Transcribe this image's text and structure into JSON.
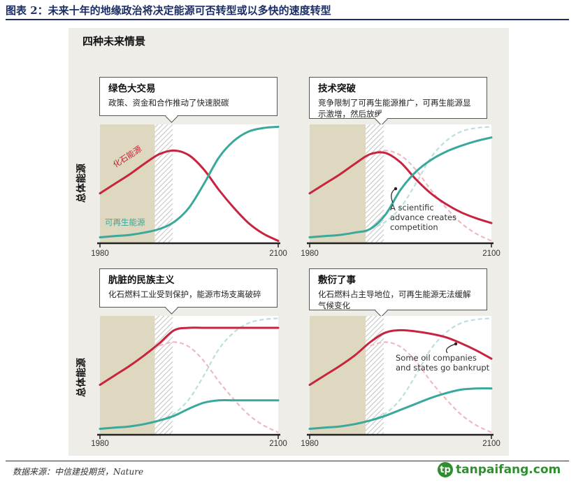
{
  "figure_title": "图表 2：未来十年的地缘政治将决定能源可否转型或以多快的速度转型",
  "panel_title": "四种未来情景",
  "y_axis_label": "总体能源",
  "source": "数据来源：中信建投期货，Nature",
  "logo": {
    "badge": "tp",
    "text": "tanpaifang.com"
  },
  "colors": {
    "fossil": "#c8233f",
    "renewable": "#3aa89a",
    "history_band": "#ddd8bf",
    "title_blue": "#1b2f66"
  },
  "chart_data": [
    {
      "type": "line",
      "title": "绿色大交易",
      "subtitle": "政策、资金和合作推动了快速脱碳",
      "x_ticks": [
        "1980",
        "2100"
      ],
      "series": [
        {
          "name": "化石能源",
          "x": [
            1980,
            1990,
            2000,
            2010,
            2020,
            2030,
            2040,
            2050,
            2060,
            2070,
            2080,
            2090,
            2100
          ],
          "y": [
            0.42,
            0.5,
            0.58,
            0.67,
            0.75,
            0.78,
            0.74,
            0.62,
            0.45,
            0.3,
            0.17,
            0.08,
            0.02
          ]
        },
        {
          "name": "可再生能源",
          "x": [
            1980,
            1990,
            2000,
            2010,
            2020,
            2030,
            2040,
            2050,
            2060,
            2070,
            2080,
            2090,
            2100
          ],
          "y": [
            0.05,
            0.06,
            0.07,
            0.09,
            0.12,
            0.18,
            0.3,
            0.5,
            0.72,
            0.86,
            0.94,
            0.97,
            0.98
          ]
        }
      ],
      "ghost_series": [],
      "annotation": ""
    },
    {
      "type": "line",
      "title": "技术突破",
      "subtitle": "竞争限制了可再生能源推广，可再生能源显示激增，然后放缓",
      "x_ticks": [
        "1980",
        "2100"
      ],
      "series": [
        {
          "name": "",
          "x": [
            1980,
            1990,
            2000,
            2010,
            2020,
            2030,
            2040,
            2050,
            2060,
            2070,
            2080,
            2090,
            2100
          ],
          "y": [
            0.42,
            0.5,
            0.58,
            0.67,
            0.75,
            0.76,
            0.68,
            0.54,
            0.42,
            0.33,
            0.26,
            0.21,
            0.17
          ]
        },
        {
          "name": "",
          "x": [
            1980,
            1990,
            2000,
            2010,
            2020,
            2030,
            2040,
            2050,
            2060,
            2070,
            2080,
            2090,
            2100
          ],
          "y": [
            0.05,
            0.06,
            0.07,
            0.09,
            0.12,
            0.24,
            0.45,
            0.6,
            0.7,
            0.77,
            0.82,
            0.86,
            0.89
          ]
        }
      ],
      "ghost_series": [
        "fossil_green_deal",
        "renewable_green_deal"
      ],
      "annotation": "A scientific\nadvance creates\ncompetition"
    },
    {
      "type": "line",
      "title": "肮脏的民族主义",
      "subtitle": "化石燃料工业受到保护，能源市场支离破碎",
      "x_ticks": [
        "1980",
        "2100"
      ],
      "series": [
        {
          "name": "",
          "x": [
            1980,
            1990,
            2000,
            2010,
            2020,
            2030,
            2040,
            2050,
            2060,
            2070,
            2080,
            2090,
            2100
          ],
          "y": [
            0.42,
            0.5,
            0.58,
            0.67,
            0.77,
            0.88,
            0.9,
            0.9,
            0.9,
            0.9,
            0.9,
            0.9,
            0.9
          ]
        },
        {
          "name": "",
          "x": [
            1980,
            1990,
            2000,
            2010,
            2020,
            2030,
            2040,
            2050,
            2060,
            2070,
            2080,
            2090,
            2100
          ],
          "y": [
            0.05,
            0.06,
            0.07,
            0.09,
            0.12,
            0.16,
            0.22,
            0.27,
            0.29,
            0.29,
            0.29,
            0.29,
            0.29
          ]
        }
      ],
      "ghost_series": [
        "fossil_green_deal",
        "renewable_green_deal"
      ],
      "annotation": ""
    },
    {
      "type": "line",
      "title": "敷衍了事",
      "subtitle": "化石燃料占主导地位，可再生能源无法缓解气候变化",
      "x_ticks": [
        "1980",
        "2100"
      ],
      "series": [
        {
          "name": "",
          "x": [
            1980,
            1990,
            2000,
            2010,
            2020,
            2030,
            2040,
            2050,
            2060,
            2070,
            2080,
            2090,
            2100
          ],
          "y": [
            0.42,
            0.5,
            0.58,
            0.67,
            0.78,
            0.86,
            0.88,
            0.87,
            0.85,
            0.82,
            0.77,
            0.71,
            0.64
          ]
        },
        {
          "name": "",
          "x": [
            1980,
            1990,
            2000,
            2010,
            2020,
            2030,
            2040,
            2050,
            2060,
            2070,
            2080,
            2090,
            2100
          ],
          "y": [
            0.05,
            0.06,
            0.07,
            0.09,
            0.12,
            0.16,
            0.21,
            0.26,
            0.31,
            0.35,
            0.38,
            0.39,
            0.39
          ]
        }
      ],
      "ghost_series": [
        "fossil_green_deal",
        "renewable_green_deal"
      ],
      "annotation": "Some oil companies\nand states go bankrupt"
    }
  ],
  "ghost_curves": {
    "fossil_green_deal": {
      "x": [
        2020,
        2030,
        2040,
        2050,
        2060,
        2070,
        2080,
        2090,
        2100
      ],
      "y": [
        0.75,
        0.78,
        0.74,
        0.62,
        0.45,
        0.3,
        0.17,
        0.08,
        0.02
      ]
    },
    "renewable_green_deal": {
      "x": [
        2020,
        2030,
        2040,
        2050,
        2060,
        2070,
        2080,
        2090,
        2100
      ],
      "y": [
        0.12,
        0.18,
        0.3,
        0.5,
        0.72,
        0.86,
        0.94,
        0.97,
        0.98
      ]
    }
  }
}
